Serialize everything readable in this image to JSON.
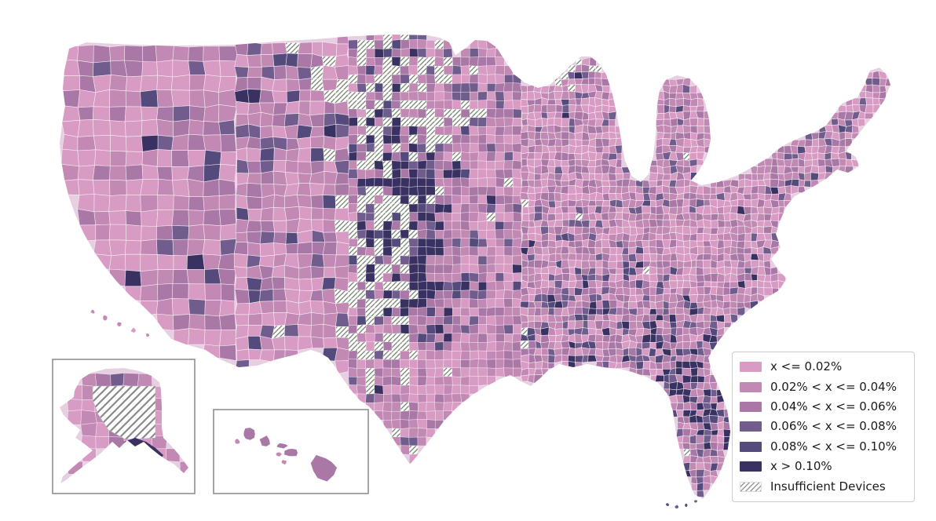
{
  "page": {
    "background": "#ffffff"
  },
  "chart_data": {
    "type": "choropleth",
    "title": "",
    "region": "United States counties (contiguous US with Alaska and Hawaii insets)",
    "metric_unit": "%",
    "bins": [
      {
        "label": "x <= 0.02%",
        "color": "#d89bc4"
      },
      {
        "label": "0.02% < x <= 0.04%",
        "color": "#c289b4"
      },
      {
        "label": "0.04% < x <= 0.06%",
        "color": "#aa78a6"
      },
      {
        "label": "0.06% < x <= 0.08%",
        "color": "#715d8d"
      },
      {
        "label": "0.08% < x <= 0.10%",
        "color": "#554a7c"
      },
      {
        "label": "x > 0.10%",
        "color": "#3a3163"
      }
    ],
    "no_data": {
      "label": "Insufficient Devices",
      "fill": "#ffffff",
      "hatch": "///",
      "hatch_color_map": "#74826f",
      "hatch_color_legend": "#9a9a9a"
    },
    "legend": {
      "position": "lower-right",
      "border_color": "#cccccc",
      "background": "#ffffff",
      "text_color": "#1a1a1a"
    },
    "insets": [
      {
        "name": "Alaska"
      },
      {
        "name": "Hawaii"
      }
    ],
    "styles": {
      "county_border": "rgba(255,255,255,0.75)",
      "base_land": "#e6cfe0",
      "inset_border": "#8f8f8f"
    },
    "pattern_notes": [
      "Dense cluster of dark high-value counties along the central Great Plains (Dakotas, Nebraska, Kansas, Oklahoma panhandle)",
      "Hatched insufficient-device counties concentrated in the western Plains, west Texas, Montana and interior Alaska",
      "Very light low-value counties across central Texas, coastal California and the mid-Atlantic coastal plain",
      "Scattered dark counties through the Southeast, Gulf coast and Florida"
    ]
  }
}
